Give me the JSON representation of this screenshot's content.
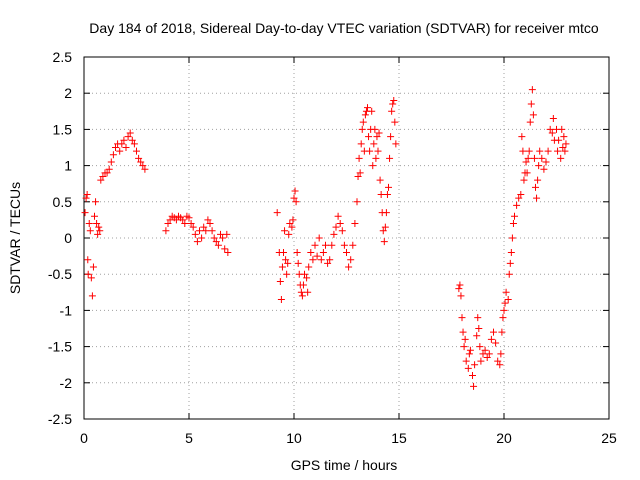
{
  "chart_data": {
    "type": "scatter",
    "title": "Day 184 of 2018, Sidereal Day-to-day VTEC variation (SDTVAR) for receiver mtco",
    "xlabel": "GPS time / hours",
    "ylabel": "SDTVAR / TECUs",
    "xlim": [
      0,
      25
    ],
    "ylim": [
      -2.5,
      2.5
    ],
    "xticks": [
      0,
      5,
      10,
      15,
      20,
      25
    ],
    "xtick_labels": [
      "0",
      "5",
      "10",
      "15",
      "20",
      "25"
    ],
    "yticks": [
      -2.5,
      -2,
      -1.5,
      -1,
      -0.5,
      0,
      0.5,
      1,
      1.5,
      2,
      2.5
    ],
    "ytick_labels": [
      "-2.5",
      "-2",
      "-1.5",
      "-1",
      "-0.5",
      "0",
      "0.5",
      "1",
      "1.5",
      "2",
      "2.5"
    ],
    "grid": true,
    "marker": "+",
    "color": "#ff0000",
    "series": [
      {
        "name": "SDTVAR",
        "points": [
          [
            0.05,
            0.35
          ],
          [
            0.1,
            0.55
          ],
          [
            0.15,
            0.6
          ],
          [
            0.18,
            -0.3
          ],
          [
            0.2,
            -0.5
          ],
          [
            0.25,
            0.2
          ],
          [
            0.3,
            0.1
          ],
          [
            0.35,
            -0.55
          ],
          [
            0.4,
            -0.8
          ],
          [
            0.45,
            -0.4
          ],
          [
            0.5,
            0.3
          ],
          [
            0.55,
            0.5
          ],
          [
            0.6,
            0.2
          ],
          [
            0.65,
            0.05
          ],
          [
            0.7,
            0.15
          ],
          [
            0.75,
            0.1
          ],
          [
            0.8,
            0.8
          ],
          [
            0.9,
            0.85
          ],
          [
            1.0,
            0.9
          ],
          [
            1.1,
            0.9
          ],
          [
            1.2,
            0.95
          ],
          [
            1.3,
            1.05
          ],
          [
            1.4,
            1.15
          ],
          [
            1.5,
            1.25
          ],
          [
            1.6,
            1.3
          ],
          [
            1.7,
            1.2
          ],
          [
            1.8,
            1.3
          ],
          [
            1.9,
            1.35
          ],
          [
            2.0,
            1.25
          ],
          [
            2.1,
            1.4
          ],
          [
            2.2,
            1.45
          ],
          [
            2.3,
            1.35
          ],
          [
            2.4,
            1.3
          ],
          [
            2.5,
            1.2
          ],
          [
            2.6,
            1.1
          ],
          [
            2.7,
            1.05
          ],
          [
            2.8,
            1.0
          ],
          [
            2.9,
            0.95
          ],
          [
            3.9,
            0.1
          ],
          [
            4.0,
            0.2
          ],
          [
            4.1,
            0.25
          ],
          [
            4.2,
            0.3
          ],
          [
            4.3,
            0.28
          ],
          [
            4.4,
            0.25
          ],
          [
            4.5,
            0.3
          ],
          [
            4.6,
            0.28
          ],
          [
            4.7,
            0.25
          ],
          [
            4.8,
            0.2
          ],
          [
            4.9,
            0.3
          ],
          [
            5.0,
            0.28
          ],
          [
            5.1,
            0.2
          ],
          [
            5.2,
            0.15
          ],
          [
            5.3,
            0.05
          ],
          [
            5.4,
            -0.05
          ],
          [
            5.5,
            0.1
          ],
          [
            5.6,
            0.0
          ],
          [
            5.7,
            0.15
          ],
          [
            5.8,
            0.1
          ],
          [
            5.9,
            0.25
          ],
          [
            6.0,
            0.2
          ],
          [
            6.1,
            0.1
          ],
          [
            6.2,
            0.0
          ],
          [
            6.3,
            -0.05
          ],
          [
            6.4,
            -0.1
          ],
          [
            6.5,
            0.05
          ],
          [
            6.6,
            0.0
          ],
          [
            6.7,
            -0.15
          ],
          [
            6.8,
            0.05
          ],
          [
            6.85,
            -0.2
          ],
          [
            9.2,
            0.35
          ],
          [
            9.3,
            -0.2
          ],
          [
            9.35,
            -0.6
          ],
          [
            9.4,
            -0.85
          ],
          [
            9.45,
            -0.4
          ],
          [
            9.5,
            -0.2
          ],
          [
            9.55,
            0.1
          ],
          [
            9.6,
            -0.3
          ],
          [
            9.65,
            -0.5
          ],
          [
            9.7,
            -0.35
          ],
          [
            9.75,
            0.05
          ],
          [
            9.8,
            0.2
          ],
          [
            9.9,
            0.15
          ],
          [
            9.95,
            0.25
          ],
          [
            10.0,
            0.55
          ],
          [
            10.05,
            0.65
          ],
          [
            10.1,
            0.5
          ],
          [
            10.15,
            -0.2
          ],
          [
            10.2,
            -0.35
          ],
          [
            10.25,
            -0.5
          ],
          [
            10.3,
            -0.65
          ],
          [
            10.35,
            -0.75
          ],
          [
            10.4,
            -0.8
          ],
          [
            10.45,
            -0.65
          ],
          [
            10.5,
            -0.5
          ],
          [
            10.6,
            -0.55
          ],
          [
            10.65,
            -0.75
          ],
          [
            10.7,
            -0.4
          ],
          [
            10.8,
            -0.2
          ],
          [
            10.9,
            -0.3
          ],
          [
            11.0,
            -0.1
          ],
          [
            11.1,
            -0.25
          ],
          [
            11.2,
            0.0
          ],
          [
            11.3,
            -0.3
          ],
          [
            11.4,
            -0.2
          ],
          [
            11.5,
            -0.1
          ],
          [
            11.6,
            -0.35
          ],
          [
            11.7,
            -0.3
          ],
          [
            11.8,
            -0.1
          ],
          [
            11.9,
            0.05
          ],
          [
            12.0,
            0.15
          ],
          [
            12.1,
            0.3
          ],
          [
            12.2,
            0.2
          ],
          [
            12.3,
            0.1
          ],
          [
            12.4,
            -0.1
          ],
          [
            12.5,
            -0.2
          ],
          [
            12.6,
            -0.4
          ],
          [
            12.7,
            -0.3
          ],
          [
            12.8,
            -0.1
          ],
          [
            12.9,
            0.2
          ],
          [
            13.0,
            0.5
          ],
          [
            13.05,
            0.85
          ],
          [
            13.1,
            1.1
          ],
          [
            13.15,
            0.9
          ],
          [
            13.2,
            1.3
          ],
          [
            13.25,
            1.5
          ],
          [
            13.3,
            1.6
          ],
          [
            13.35,
            1.2
          ],
          [
            13.4,
            1.7
          ],
          [
            13.45,
            1.75
          ],
          [
            13.5,
            1.8
          ],
          [
            13.55,
            1.4
          ],
          [
            13.6,
            1.2
          ],
          [
            13.65,
            1.5
          ],
          [
            13.7,
            1.75
          ],
          [
            13.75,
            1.0
          ],
          [
            13.8,
            1.3
          ],
          [
            13.85,
            1.5
          ],
          [
            13.9,
            1.1
          ],
          [
            13.95,
            1.4
          ],
          [
            14.0,
            1.2
          ],
          [
            14.05,
            1.45
          ],
          [
            14.1,
            0.8
          ],
          [
            14.15,
            0.6
          ],
          [
            14.2,
            0.35
          ],
          [
            14.25,
            0.1
          ],
          [
            14.3,
            -0.05
          ],
          [
            14.35,
            0.15
          ],
          [
            14.4,
            0.35
          ],
          [
            14.45,
            0.6
          ],
          [
            14.5,
            0.7
          ],
          [
            14.55,
            1.1
          ],
          [
            14.6,
            1.4
          ],
          [
            14.65,
            1.75
          ],
          [
            14.7,
            1.85
          ],
          [
            14.75,
            1.9
          ],
          [
            14.8,
            1.6
          ],
          [
            14.85,
            1.3
          ],
          [
            17.85,
            -0.7
          ],
          [
            17.9,
            -0.65
          ],
          [
            17.95,
            -0.8
          ],
          [
            18.0,
            -1.1
          ],
          [
            18.05,
            -1.3
          ],
          [
            18.1,
            -1.5
          ],
          [
            18.15,
            -1.4
          ],
          [
            18.2,
            -1.7
          ],
          [
            18.3,
            -1.8
          ],
          [
            18.35,
            -1.6
          ],
          [
            18.4,
            -1.55
          ],
          [
            18.5,
            -1.9
          ],
          [
            18.55,
            -2.05
          ],
          [
            18.6,
            -1.75
          ],
          [
            18.7,
            -1.35
          ],
          [
            18.75,
            -1.1
          ],
          [
            18.8,
            -1.25
          ],
          [
            18.85,
            -1.5
          ],
          [
            18.9,
            -1.7
          ],
          [
            19.0,
            -1.6
          ],
          [
            19.1,
            -1.55
          ],
          [
            19.2,
            -1.65
          ],
          [
            19.3,
            -1.6
          ],
          [
            19.4,
            -1.4
          ],
          [
            19.5,
            -1.3
          ],
          [
            19.6,
            -1.45
          ],
          [
            19.7,
            -1.7
          ],
          [
            19.8,
            -1.75
          ],
          [
            19.85,
            -1.6
          ],
          [
            19.9,
            -1.3
          ],
          [
            19.95,
            -1.1
          ],
          [
            20.0,
            -1.0
          ],
          [
            20.05,
            -0.9
          ],
          [
            20.1,
            -0.75
          ],
          [
            20.2,
            -0.85
          ],
          [
            20.25,
            -0.5
          ],
          [
            20.3,
            -0.35
          ],
          [
            20.35,
            -0.2
          ],
          [
            20.4,
            0.0
          ],
          [
            20.45,
            0.2
          ],
          [
            20.5,
            0.3
          ],
          [
            20.6,
            0.45
          ],
          [
            20.7,
            0.55
          ],
          [
            20.8,
            0.6
          ],
          [
            20.85,
            1.4
          ],
          [
            20.9,
            1.2
          ],
          [
            20.95,
            0.8
          ],
          [
            21.0,
            0.9
          ],
          [
            21.05,
            1.05
          ],
          [
            21.1,
            0.9
          ],
          [
            21.15,
            1.1
          ],
          [
            21.2,
            1.2
          ],
          [
            21.25,
            1.6
          ],
          [
            21.3,
            1.85
          ],
          [
            21.35,
            2.05
          ],
          [
            21.4,
            1.7
          ],
          [
            21.45,
            1.1
          ],
          [
            21.5,
            0.7
          ],
          [
            21.55,
            0.55
          ],
          [
            21.6,
            0.8
          ],
          [
            21.65,
            1.0
          ],
          [
            21.7,
            1.2
          ],
          [
            21.8,
            1.1
          ],
          [
            21.9,
            0.95
          ],
          [
            22.0,
            1.05
          ],
          [
            22.1,
            1.2
          ],
          [
            22.2,
            1.5
          ],
          [
            22.3,
            1.45
          ],
          [
            22.35,
            1.65
          ],
          [
            22.4,
            1.35
          ],
          [
            22.5,
            1.5
          ],
          [
            22.55,
            1.2
          ],
          [
            22.6,
            1.35
          ],
          [
            22.7,
            1.1
          ],
          [
            22.75,
            1.5
          ],
          [
            22.8,
            1.25
          ],
          [
            22.85,
            1.4
          ],
          [
            22.9,
            1.2
          ],
          [
            22.95,
            1.3
          ]
        ]
      }
    ]
  }
}
